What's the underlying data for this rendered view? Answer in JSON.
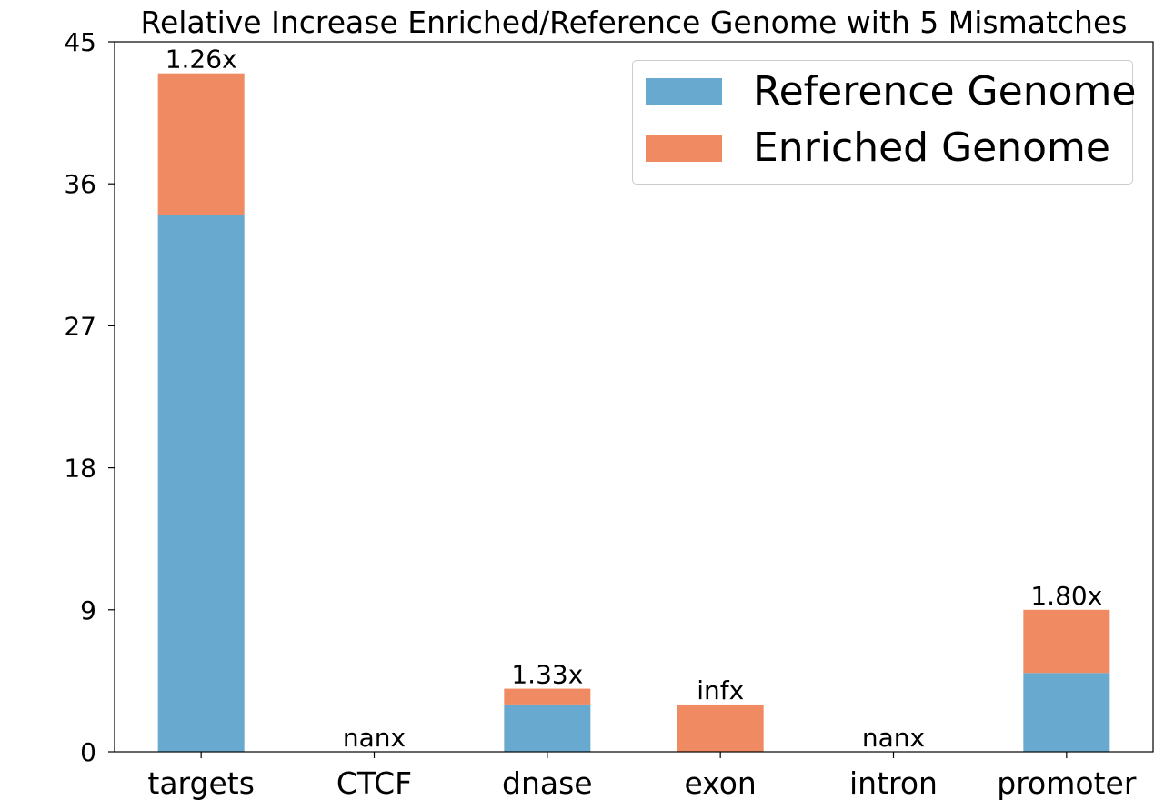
{
  "chart_data": {
    "type": "bar",
    "stacked": true,
    "title": "Relative Increase Enriched/Reference Genome with 5 Mismatches",
    "xlabel": "",
    "ylabel": "",
    "categories": [
      "targets",
      "CTCF",
      "dnase",
      "exon",
      "intron",
      "promoter"
    ],
    "series": [
      {
        "name": "Reference Genome",
        "color": "#67a9cf",
        "values": [
          34,
          0,
          3,
          0,
          0,
          5
        ]
      },
      {
        "name": "Enriched Genome",
        "color": "#ef8a62",
        "values": [
          9,
          0,
          1,
          3,
          0,
          4
        ]
      }
    ],
    "bar_labels": [
      "1.26x",
      "nanx",
      "1.33x",
      "infx",
      "nanx",
      "1.80x"
    ],
    "ylim": [
      0,
      45
    ],
    "yticks": [
      "0",
      "9",
      "18",
      "27",
      "36",
      "45"
    ],
    "grid": false,
    "legend_position": "top-right"
  }
}
